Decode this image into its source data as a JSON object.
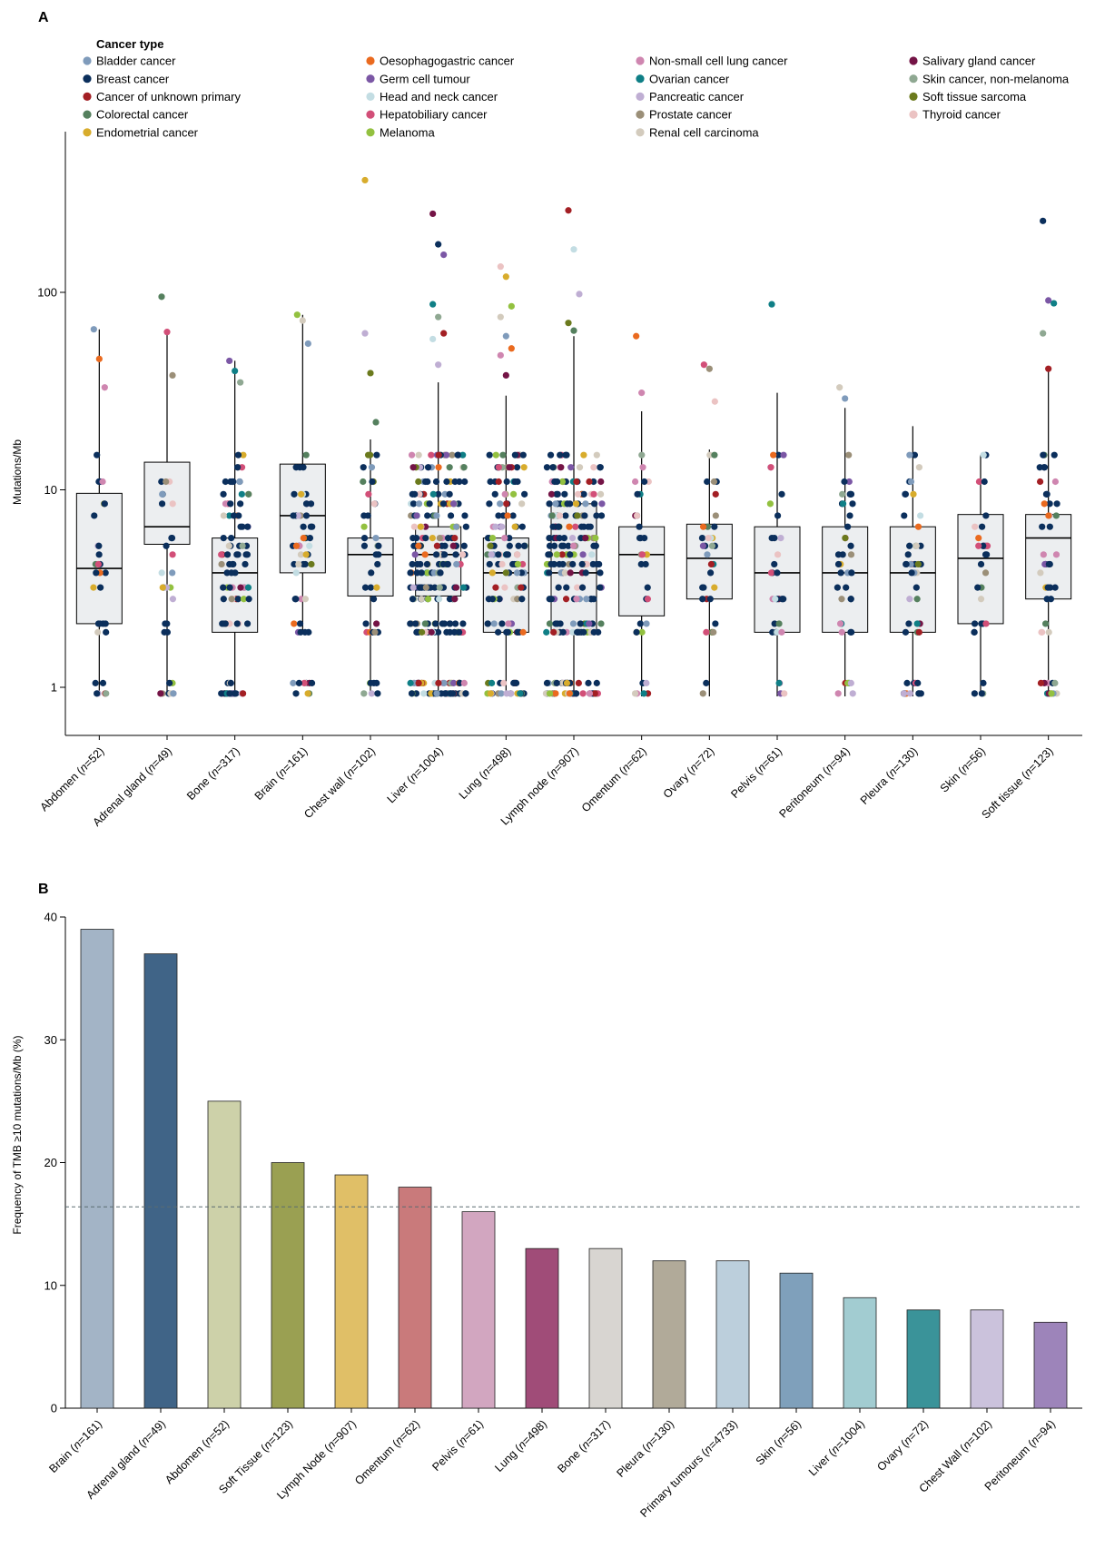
{
  "chart_data": [
    {
      "panel": "A",
      "type": "box-swarm",
      "ylabel": "Mutations/Mb",
      "yscale": "log",
      "ylim": [
        0.85,
        500
      ],
      "yticks": [
        1,
        10,
        100
      ],
      "legend": {
        "title": "Cancer type",
        "placement": "top",
        "entries": [
          {
            "name": "Bladder cancer",
            "color": "#7f9bbb"
          },
          {
            "name": "Breast cancer",
            "color": "#0b2f5c"
          },
          {
            "name": "Cancer of unknown primary",
            "color": "#a31f24"
          },
          {
            "name": "Colorectal cancer",
            "color": "#55805e"
          },
          {
            "name": "Endometrial cancer",
            "color": "#d8ac2c"
          },
          {
            "name": "Oesophagogastric cancer",
            "color": "#ea6a1f"
          },
          {
            "name": "Germ cell tumour",
            "color": "#7b57a5"
          },
          {
            "name": "Head and neck cancer",
            "color": "#c3dde3"
          },
          {
            "name": "Hepatobiliary cancer",
            "color": "#d24f78"
          },
          {
            "name": "Melanoma",
            "color": "#93c140"
          },
          {
            "name": "Non-small cell lung cancer",
            "color": "#cf86b0"
          },
          {
            "name": "Ovarian cancer",
            "color": "#0f7f86"
          },
          {
            "name": "Pancreatic cancer",
            "color": "#bfaed3"
          },
          {
            "name": "Prostate cancer",
            "color": "#9b8f78"
          },
          {
            "name": "Renal cell carcinoma",
            "color": "#d3cbbd"
          },
          {
            "name": "Salivary gland cancer",
            "color": "#741446"
          },
          {
            "name": "Skin cancer, non-melanoma",
            "color": "#8fa892"
          },
          {
            "name": "Soft tissue sarcoma",
            "color": "#6b7a1d"
          },
          {
            "name": "Thyroid cancer",
            "color": "#ebc3c3"
          }
        ]
      },
      "categories": [
        "Abdomen",
        "Adrenal gland",
        "Bone",
        "Brain",
        "Chest wall",
        "Liver",
        "Lung",
        "Lymph node",
        "Omentum",
        "Ovary",
        "Pelvis",
        "Peritoneum",
        "Pleura",
        "Skin",
        "Soft tissue"
      ],
      "n": [
        52,
        49,
        317,
        161,
        102,
        1004,
        498,
        907,
        62,
        72,
        61,
        94,
        130,
        56,
        123
      ],
      "boxes": [
        {
          "q1": 2.1,
          "median": 4.0,
          "q3": 9.6,
          "whisker_low": 0.9,
          "whisker_high": 65
        },
        {
          "q1": 5.3,
          "median": 6.5,
          "q3": 13.8,
          "whisker_low": 0.95,
          "whisker_high": 65
        },
        {
          "q1": 1.9,
          "median": 3.8,
          "q3": 5.7,
          "whisker_low": 0.9,
          "whisker_high": 45
        },
        {
          "q1": 3.8,
          "median": 7.4,
          "q3": 13.5,
          "whisker_low": 1.9,
          "whisker_high": 77
        },
        {
          "q1": 2.9,
          "median": 4.7,
          "q3": 5.7,
          "whisker_low": 0.9,
          "whisker_high": 18
        },
        {
          "q1": 2.9,
          "median": 4.7,
          "q3": 6.5,
          "whisker_low": 0.9,
          "whisker_high": 35
        },
        {
          "q1": 1.9,
          "median": 3.8,
          "q3": 5.7,
          "whisker_low": 0.9,
          "whisker_high": 30
        },
        {
          "q1": 1.9,
          "median": 3.8,
          "q3": 8.5,
          "whisker_low": 0.9,
          "whisker_high": 60
        },
        {
          "q1": 2.3,
          "median": 4.7,
          "q3": 6.5,
          "whisker_low": 0.9,
          "whisker_high": 25
        },
        {
          "q1": 2.8,
          "median": 4.5,
          "q3": 6.7,
          "whisker_low": 0.9,
          "whisker_high": 16
        },
        {
          "q1": 1.9,
          "median": 3.8,
          "q3": 6.5,
          "whisker_low": 0.9,
          "whisker_high": 31
        },
        {
          "q1": 1.9,
          "median": 3.8,
          "q3": 6.5,
          "whisker_low": 0.9,
          "whisker_high": 26
        },
        {
          "q1": 1.9,
          "median": 3.8,
          "q3": 6.5,
          "whisker_low": 0.9,
          "whisker_high": 21
        },
        {
          "q1": 2.1,
          "median": 4.5,
          "q3": 7.5,
          "whisker_low": 0.9,
          "whisker_high": 15
        },
        {
          "q1": 2.8,
          "median": 5.7,
          "q3": 7.5,
          "whisker_low": 0.9,
          "whisker_high": 40
        }
      ],
      "outliers": [
        {
          "category": "Abdomen",
          "values": [
            65,
            46,
            33
          ]
        },
        {
          "category": "Adrenal gland",
          "values": [
            95,
            63,
            38
          ]
        },
        {
          "category": "Bone",
          "values": [
            45,
            40,
            35
          ]
        },
        {
          "category": "Brain",
          "values": [
            77,
            72,
            55
          ]
        },
        {
          "category": "Chest wall",
          "values": [
            62,
            39,
            22
          ]
        },
        {
          "category": "Liver",
          "values": [
            250,
            175,
            155,
            87,
            75,
            62,
            58,
            43
          ]
        },
        {
          "category": "Lung",
          "values": [
            135,
            120,
            85,
            75,
            60,
            52,
            48,
            38
          ]
        },
        {
          "category": "Lymph node",
          "values": [
            260,
            165,
            98,
            70,
            64
          ]
        },
        {
          "category": "Omentum",
          "values": [
            60,
            31
          ]
        },
        {
          "category": "Ovary",
          "values": [
            43,
            41,
            28
          ]
        },
        {
          "category": "Pelvis",
          "values": [
            87
          ]
        },
        {
          "category": "Peritoneum",
          "values": [
            33,
            29
          ]
        },
        {
          "category": "Skin",
          "values": []
        },
        {
          "category": "Soft tissue",
          "values": [
            230,
            91,
            88,
            62,
            41
          ]
        },
        {
          "category": "Chest wall",
          "values": [
            370
          ]
        }
      ]
    },
    {
      "panel": "B",
      "type": "bar",
      "ylabel": "Frequency of TMB ≥10 mutations/Mb (%)",
      "ylim": [
        0,
        40
      ],
      "yticks": [
        0,
        10,
        20,
        30,
        40
      ],
      "reference_line": 16.4,
      "categories": [
        "Brain",
        "Adrenal gland",
        "Abdomen",
        "Soft Tissue",
        "Lymph Node",
        "Omentum",
        "Pelvis",
        "Lung",
        "Bone",
        "Pleura",
        "Primary tumours",
        "Skin",
        "Liver",
        "Ovary",
        "Chest Wall",
        "Peritoneum"
      ],
      "n": [
        161,
        49,
        52,
        123,
        907,
        62,
        61,
        498,
        317,
        130,
        4733,
        56,
        1004,
        72,
        102,
        94
      ],
      "values": [
        39,
        37,
        25,
        20,
        19,
        18,
        16,
        13,
        13,
        12,
        12,
        11,
        9,
        8,
        8,
        7
      ],
      "colors": [
        "#a3b4c6",
        "#406487",
        "#cdd1a9",
        "#9aa052",
        "#e0bf67",
        "#c97a7b",
        "#d2a6c0",
        "#a04c78",
        "#d8d5d1",
        "#b1aa99",
        "#bccfdc",
        "#7fa0bb",
        "#a2ccd1",
        "#3a9399",
        "#cbc2dc",
        "#9d84ba"
      ]
    }
  ]
}
